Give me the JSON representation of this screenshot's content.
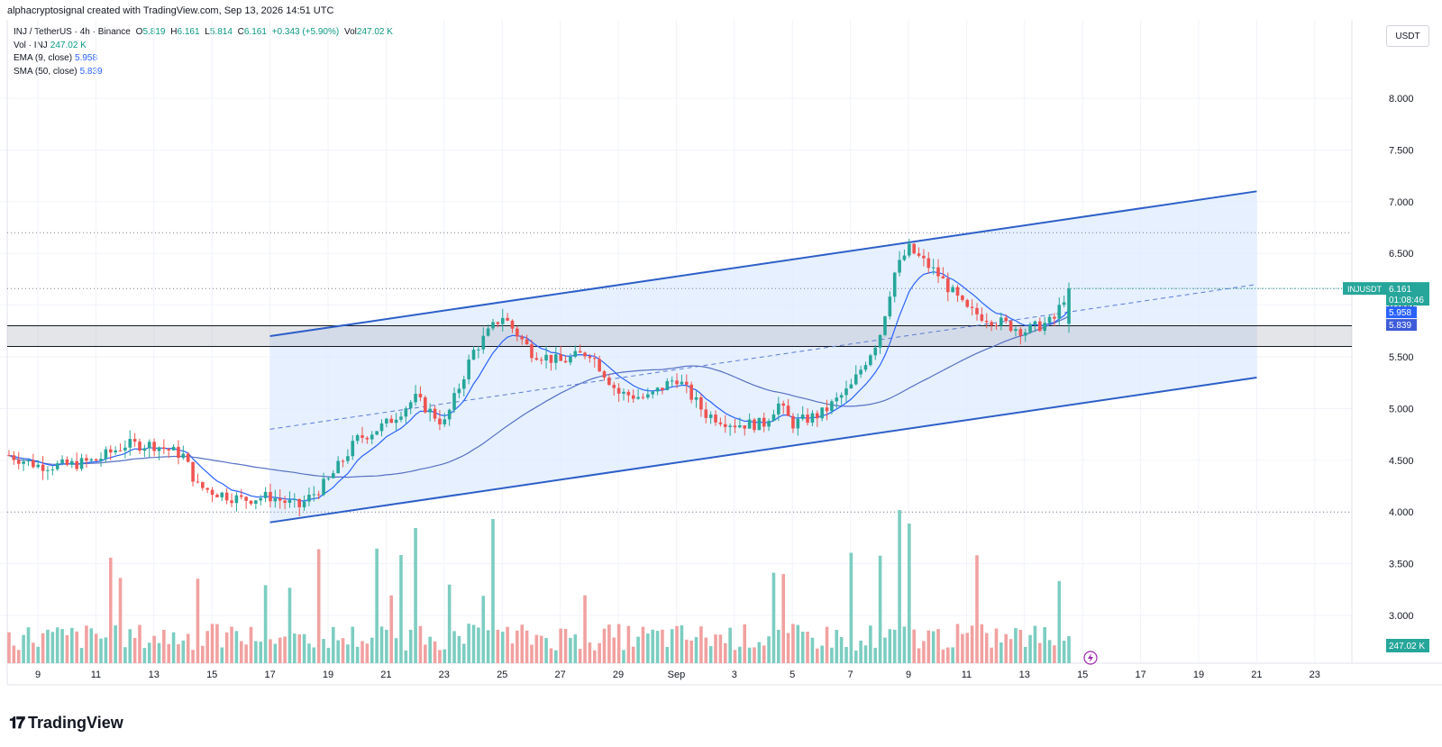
{
  "header": {
    "attribution": "alphacryptosignal created with TradingView.com, Sep 13, 2026 14:51 UTC"
  },
  "legend": {
    "symbol": "INJ / TetherUS · 4h · Binance",
    "open_label": "O",
    "open": "5.819",
    "high_label": "H",
    "high": "6.161",
    "low_label": "L",
    "low": "5.814",
    "close_label": "C",
    "close": "6.161",
    "change": "+0.343 (+5.90%)",
    "vol_label": "Vol",
    "vol": "247.02 K",
    "volume_indicator": "Vol · INJ",
    "volume_value": "247.02 K",
    "ema_label": "EMA (9, close)",
    "ema_value": "5.958",
    "sma_label": "SMA (50, close)",
    "sma_value": "5.839"
  },
  "currency_unit": "USDT",
  "price_axis": {
    "ticks": [
      "8.000",
      "7.500",
      "7.000",
      "6.500",
      "6.000",
      "5.500",
      "5.000",
      "4.500",
      "4.000",
      "3.500",
      "3.000"
    ]
  },
  "time_axis": {
    "ticks": [
      "9",
      "11",
      "13",
      "15",
      "17",
      "19",
      "21",
      "23",
      "25",
      "27",
      "29",
      "Sep",
      "3",
      "5",
      "7",
      "9",
      "11",
      "13",
      "15",
      "17",
      "19",
      "21",
      "23"
    ]
  },
  "price_labels": {
    "symbol_tag": "INJUSDT",
    "last_price": "6.161",
    "countdown": "01:08:46",
    "ema": "5.958",
    "sma": "5.839",
    "volume": "247.02 K"
  },
  "colors": {
    "up": "#26a69a",
    "down": "#ef5350",
    "vol_up": "#7ccdc1",
    "vol_down": "#f1a1a0",
    "channel_line": "#2d5fc8",
    "channel_fill": "#deebff",
    "ema": "#2962ff",
    "sma": "#5570c4"
  },
  "chart_data": {
    "type": "candlestick",
    "symbol": "INJUSDT",
    "timeframe": "4h",
    "ylim": [
      2.7,
      8.5
    ],
    "levels": {
      "support_zone": [
        5.6,
        5.8
      ],
      "dotted_levels": [
        6.7,
        6.16,
        4.0
      ],
      "ascending_channel": {
        "upper": [
          {
            "x": "Aug 17",
            "y": 5.7
          },
          {
            "x": "Sep 20",
            "y": 7.1
          }
        ],
        "lower": [
          {
            "x": "Aug 17",
            "y": 3.9
          },
          {
            "x": "Sep 20",
            "y": 5.3
          }
        ],
        "mid": [
          {
            "x": "Aug 17",
            "y": 4.8
          },
          {
            "x": "Sep 20",
            "y": 6.2
          }
        ]
      }
    },
    "close_path": [
      {
        "x": "Aug 8",
        "y": 4.55
      },
      {
        "x": "Aug 9",
        "y": 4.45
      },
      {
        "x": "Aug 10",
        "y": 4.45
      },
      {
        "x": "Aug 11",
        "y": 4.5
      },
      {
        "x": "Aug 12",
        "y": 4.65
      },
      {
        "x": "Aug 13",
        "y": 4.65
      },
      {
        "x": "Aug 14",
        "y": 4.55
      },
      {
        "x": "Aug 14.5",
        "y": 4.25
      },
      {
        "x": "Aug 15",
        "y": 4.2
      },
      {
        "x": "Aug 16",
        "y": 4.12
      },
      {
        "x": "Aug 17",
        "y": 4.15
      },
      {
        "x": "Aug 18",
        "y": 4.05
      },
      {
        "x": "Aug 19",
        "y": 4.3
      },
      {
        "x": "Aug 20",
        "y": 4.7
      },
      {
        "x": "Aug 21",
        "y": 4.85
      },
      {
        "x": "Aug 22",
        "y": 5.1
      },
      {
        "x": "Aug 23",
        "y": 4.85
      },
      {
        "x": "Aug 24",
        "y": 5.55
      },
      {
        "x": "Aug 25",
        "y": 5.9
      },
      {
        "x": "Aug 26",
        "y": 5.55
      },
      {
        "x": "Aug 27",
        "y": 5.45
      },
      {
        "x": "Aug 28",
        "y": 5.55
      },
      {
        "x": "Aug 29",
        "y": 5.15
      },
      {
        "x": "Aug 30",
        "y": 5.1
      },
      {
        "x": "Aug 31",
        "y": 5.3
      },
      {
        "x": "Sep 1",
        "y": 4.95
      },
      {
        "x": "Sep 2",
        "y": 4.85
      },
      {
        "x": "Sep 3",
        "y": 4.85
      },
      {
        "x": "Sep 3.5",
        "y": 5.05
      },
      {
        "x": "Sep 4",
        "y": 4.85
      },
      {
        "x": "Sep 5",
        "y": 4.95
      },
      {
        "x": "Sep 6",
        "y": 5.2
      },
      {
        "x": "Sep 7",
        "y": 5.7
      },
      {
        "x": "Sep 7.5",
        "y": 6.3
      },
      {
        "x": "Sep 8",
        "y": 6.55
      },
      {
        "x": "Sep 9",
        "y": 6.3
      },
      {
        "x": "Sep 10",
        "y": 5.95
      },
      {
        "x": "Sep 11",
        "y": 5.85
      },
      {
        "x": "Sep 12",
        "y": 5.75
      },
      {
        "x": "Sep 13",
        "y": 5.85
      },
      {
        "x": "Sep 13.5",
        "y": 6.16
      }
    ],
    "ema_9_last": 5.958,
    "sma_50_last": 5.839,
    "volume_last": "247.02 K"
  }
}
